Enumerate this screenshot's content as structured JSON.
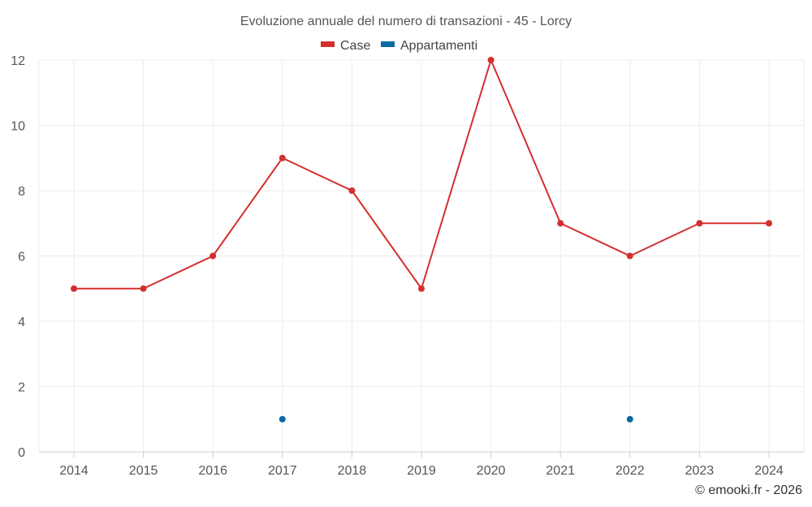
{
  "chart_data": {
    "type": "line",
    "title": "Evoluzione annuale del numero di transazioni - 45 - Lorcy",
    "categories": [
      "2014",
      "2015",
      "2016",
      "2017",
      "2018",
      "2019",
      "2020",
      "2021",
      "2022",
      "2023",
      "2024"
    ],
    "series": [
      {
        "name": "Case",
        "color": "#d32f2f",
        "values": [
          5,
          5,
          6,
          9,
          8,
          5,
          12,
          7,
          6,
          7,
          7
        ]
      },
      {
        "name": "Appartamenti",
        "color": "#0b6aa2",
        "values": [
          null,
          null,
          null,
          1,
          null,
          null,
          null,
          null,
          1,
          null,
          null
        ]
      }
    ],
    "y_ticks": [
      "0",
      "2",
      "4",
      "6",
      "8",
      "10",
      "12"
    ],
    "ylim": [
      0,
      12
    ],
    "grid": true,
    "legend_position": "top-center"
  },
  "credit": "© emooki.fr - 2026"
}
